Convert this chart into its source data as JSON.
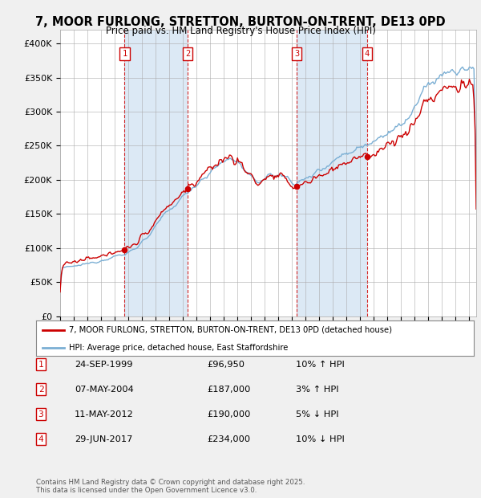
{
  "title": "7, MOOR FURLONG, STRETTON, BURTON-ON-TRENT, DE13 0PD",
  "subtitle": "Price paid vs. HM Land Registry's House Price Index (HPI)",
  "ylim": [
    0,
    420000
  ],
  "yticks": [
    0,
    50000,
    100000,
    150000,
    200000,
    250000,
    300000,
    350000,
    400000
  ],
  "ytick_labels": [
    "£0",
    "£50K",
    "£100K",
    "£150K",
    "£200K",
    "£250K",
    "£300K",
    "£350K",
    "£400K"
  ],
  "transaction_color": "#cc0000",
  "hpi_color": "#7bafd4",
  "shade_color": "#dce9f5",
  "transactions": [
    {
      "label": "1",
      "date_num": 1999.73,
      "price": 96950
    },
    {
      "label": "2",
      "date_num": 2004.35,
      "price": 187000
    },
    {
      "label": "3",
      "date_num": 2012.36,
      "price": 190000
    },
    {
      "label": "4",
      "date_num": 2017.49,
      "price": 234000
    }
  ],
  "vline_color": "#cc0000",
  "legend_entries": [
    "7, MOOR FURLONG, STRETTON, BURTON-ON-TRENT, DE13 0PD (detached house)",
    "HPI: Average price, detached house, East Staffordshire"
  ],
  "table_rows": [
    [
      "1",
      "24-SEP-1999",
      "£96,950",
      "10% ↑ HPI"
    ],
    [
      "2",
      "07-MAY-2004",
      "£187,000",
      "3% ↑ HPI"
    ],
    [
      "3",
      "11-MAY-2012",
      "£190,000",
      "5% ↓ HPI"
    ],
    [
      "4",
      "29-JUN-2017",
      "£234,000",
      "10% ↓ HPI"
    ]
  ],
  "footer": "Contains HM Land Registry data © Crown copyright and database right 2025.\nThis data is licensed under the Open Government Licence v3.0.",
  "xmin": 1995,
  "xmax": 2025.5
}
